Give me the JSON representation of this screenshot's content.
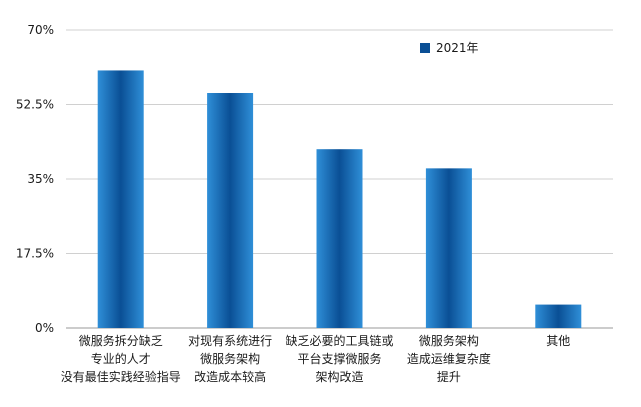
{
  "chart_data": {
    "type": "bar",
    "categories": [
      [
        "微服务拆分缺乏",
        "专业的人才",
        "没有最佳实践经验指导"
      ],
      [
        "对现有系统进行",
        "微服务架构",
        "改造成本较高"
      ],
      [
        "缺乏必要的工具链或",
        "平台支撑微服务",
        "架构改造"
      ],
      [
        "微服务架构",
        "造成运维复杂度",
        "提升"
      ],
      [
        "其他"
      ]
    ],
    "series": [
      {
        "name": "2021年",
        "values": [
          60.5,
          55.2,
          42.0,
          37.5,
          5.5
        ]
      }
    ],
    "ylim": [
      0,
      70
    ],
    "yticks": [
      0,
      17.5,
      35,
      52.5,
      70
    ],
    "ytick_labels": [
      "0%",
      "17.5%",
      "35%",
      "52.5%",
      "70%"
    ],
    "grid": true,
    "legend_position": "top-right",
    "colors": {
      "bar_light": "#2f8fd8",
      "bar_dark": "#0a4f95",
      "grid": "#d0d0d0",
      "axis": "#999999"
    }
  }
}
